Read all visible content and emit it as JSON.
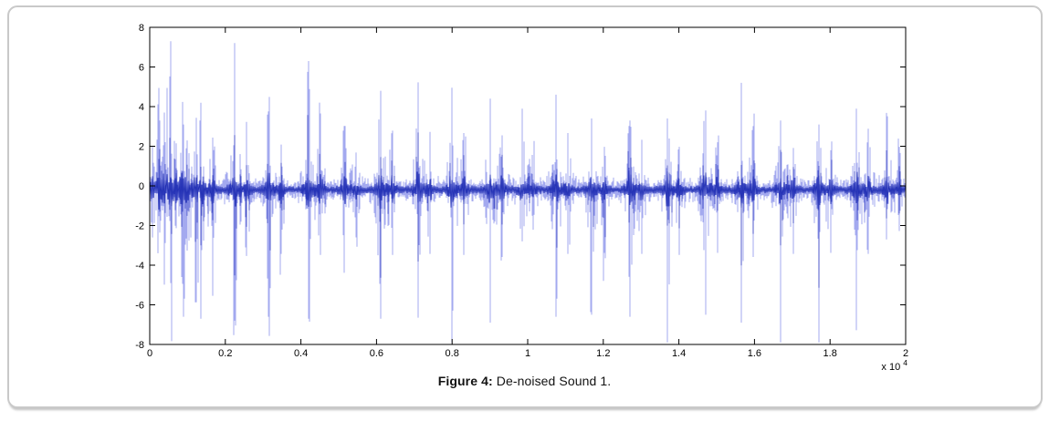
{
  "caption": {
    "label": "Figure 4:",
    "text": "De-noised Sound 1."
  },
  "colors": {
    "waveform_light": "#a3a9ef",
    "waveform_mid": "#3d49c4",
    "waveform_dark": "#2230b4",
    "axis": "#000000",
    "card_border": "#c9c9c9"
  },
  "chart_data": {
    "type": "line",
    "subtype": "audio-waveform",
    "title": "",
    "xlabel": "",
    "ylabel": "",
    "xlim": [
      0,
      20000
    ],
    "ylim": [
      -8,
      8
    ],
    "grid": false,
    "legend": null,
    "x_scale": {
      "prefix": "x 10",
      "exponent": "4"
    },
    "x_tick_labels": [
      "0",
      "0.2",
      "0.4",
      "0.6",
      "0.8",
      "1",
      "1.2",
      "1.4",
      "1.6",
      "1.8",
      "2"
    ],
    "y_tick_labels": [
      "-8",
      "-6",
      "-4",
      "-2",
      "0",
      "2",
      "4",
      "6",
      "8"
    ],
    "baseline": -0.2,
    "noise_band": 0.25,
    "beats": [
      {
        "x": 80,
        "peak": 2.0,
        "trough": -2.6
      },
      {
        "x": 220,
        "peak": 2.5,
        "trough": -3.4
      },
      {
        "x": 380,
        "peak": 3.7,
        "trough": -4.1
      },
      {
        "x": 550,
        "peak": 7.3,
        "trough": -4.9
      },
      {
        "x": 900,
        "peak": 3.1,
        "trough": -6.6
      },
      {
        "x": 1350,
        "peak": 4.2,
        "trough": -6.7
      },
      {
        "x": 2250,
        "peak": 5.3,
        "trough": -6.8
      },
      {
        "x": 3150,
        "peak": 3.6,
        "trough": -6.6
      },
      {
        "x": 4200,
        "peak": 6.3,
        "trough": -6.7
      },
      {
        "x": 5150,
        "peak": 2.9,
        "trough": -3.9
      },
      {
        "x": 6100,
        "peak": 4.8,
        "trough": -6.7
      },
      {
        "x": 7100,
        "peak": 4.7,
        "trough": -6.6
      },
      {
        "x": 8000,
        "peak": 4.6,
        "trough": -6.7
      },
      {
        "x": 9000,
        "peak": 4.4,
        "trough": -6.9
      },
      {
        "x": 9850,
        "peak": 3.9,
        "trough": -2.8
      },
      {
        "x": 10750,
        "peak": 4.6,
        "trough": -6.6
      },
      {
        "x": 11700,
        "peak": 3.4,
        "trough": -6.5
      },
      {
        "x": 12700,
        "peak": 3.3,
        "trough": -6.6
      },
      {
        "x": 13700,
        "peak": 3.4,
        "trough": -6.7
      },
      {
        "x": 14700,
        "peak": 3.8,
        "trough": -6.5
      },
      {
        "x": 15650,
        "peak": 5.2,
        "trough": -6.9
      },
      {
        "x": 16700,
        "peak": 3.3,
        "trough": -6.6
      },
      {
        "x": 17700,
        "peak": 3.1,
        "trough": -6.5
      },
      {
        "x": 18700,
        "peak": 3.9,
        "trough": -6.6
      },
      {
        "x": 19500,
        "peak": 3.4,
        "trough": -2.7
      }
    ]
  }
}
